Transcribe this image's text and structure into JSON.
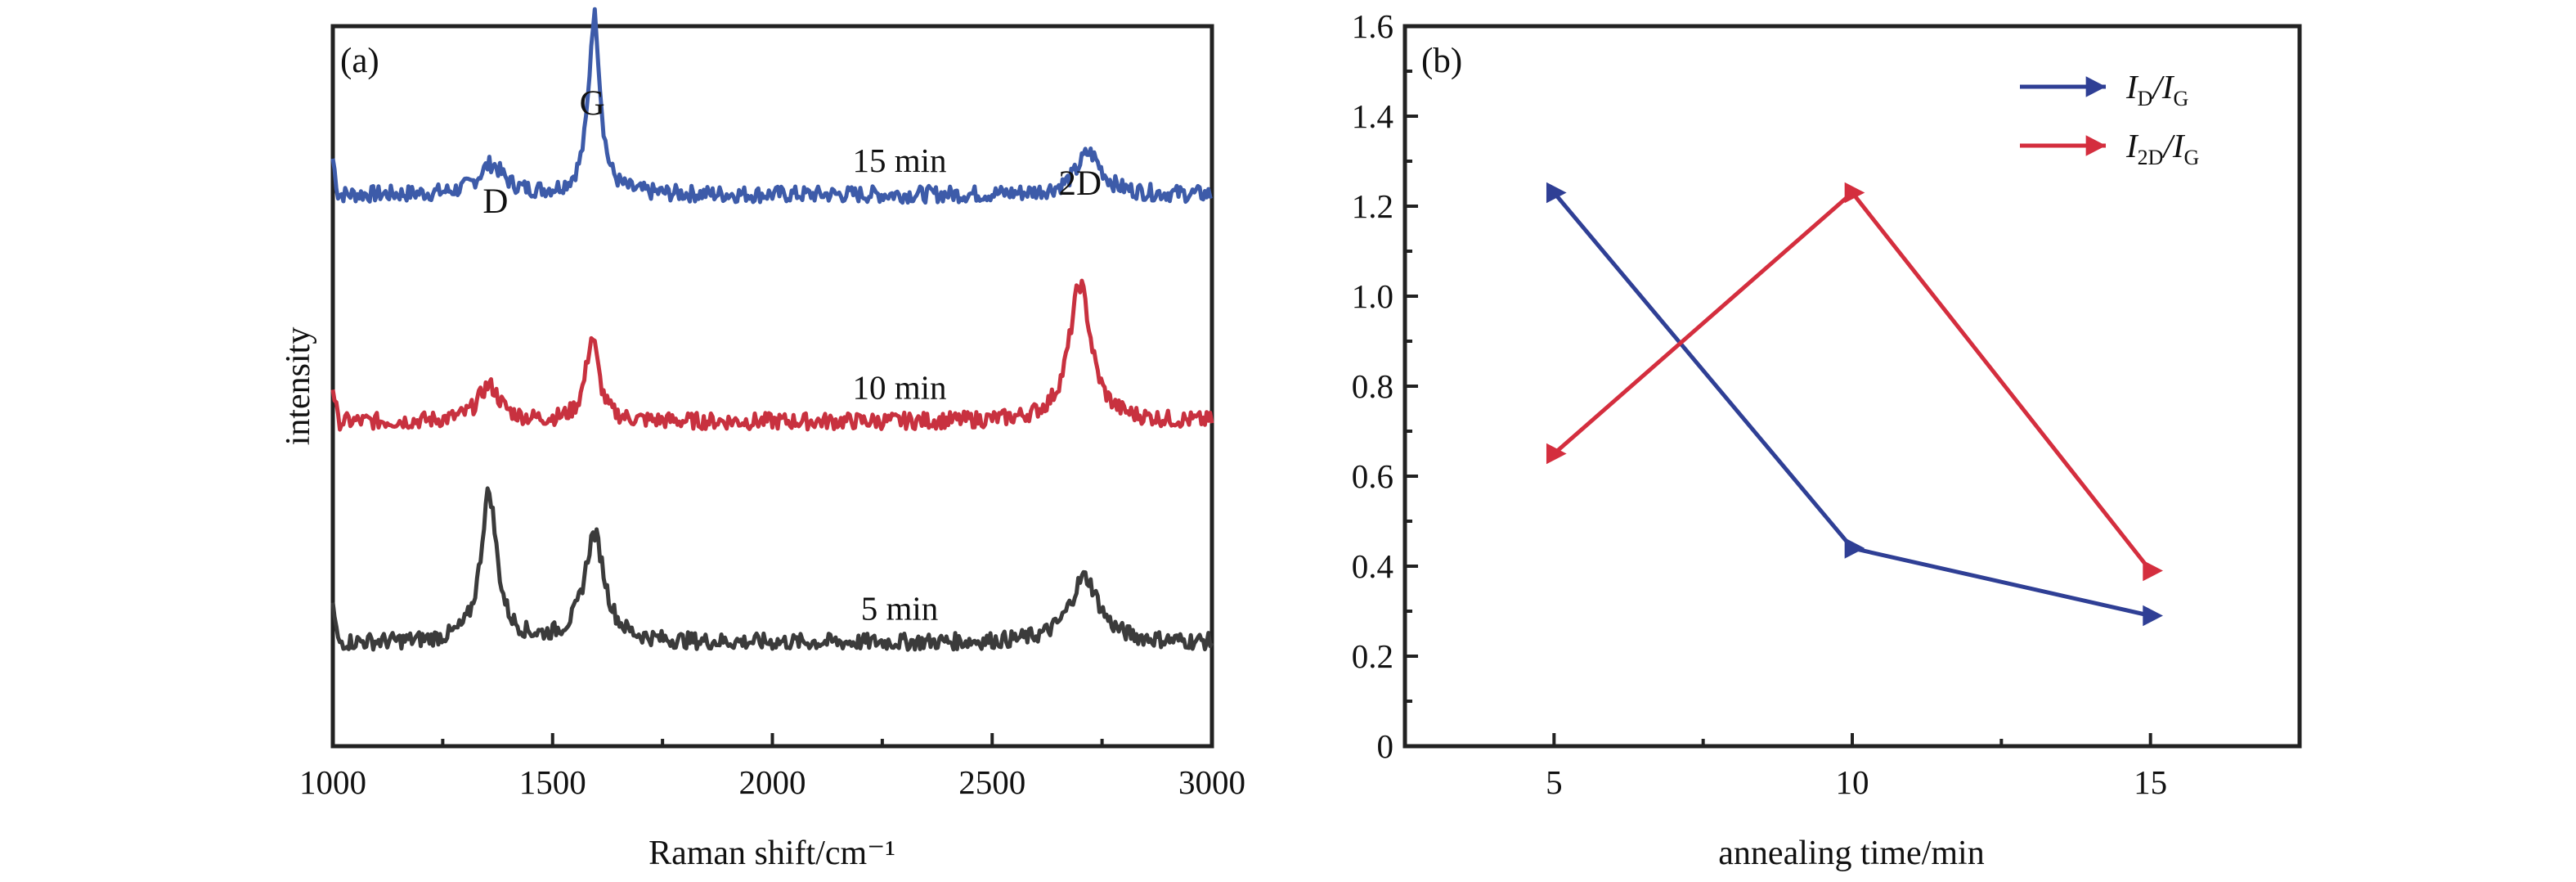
{
  "chart_data": [
    {
      "type": "line",
      "panel_label": "(a)",
      "xlabel": "Raman shift/cm⁻¹",
      "ylabel": "intensity",
      "xlim": [
        1000,
        3000
      ],
      "x_ticks": [
        "1000",
        "1500",
        "2000",
        "2500",
        "3000"
      ],
      "peak_labels": [
        {
          "text": "D",
          "x": 1370
        },
        {
          "text": "G",
          "x": 1590
        },
        {
          "text": "2D",
          "x": 2700
        }
      ],
      "series": [
        {
          "name": "15 min",
          "color": "#3d5ba9",
          "baseline": 0.8,
          "peaks": [
            {
              "center": 1360,
              "height": 0.05,
              "width": 35
            },
            {
              "center": 1595,
              "height": 0.3,
              "width": 16
            },
            {
              "center": 2720,
              "height": 0.07,
              "width": 35
            }
          ]
        },
        {
          "name": "10 min",
          "color": "#c8313f",
          "baseline": 0.42,
          "peaks": [
            {
              "center": 1355,
              "height": 0.06,
              "width": 30
            },
            {
              "center": 1590,
              "height": 0.14,
              "width": 18
            },
            {
              "center": 2700,
              "height": 0.23,
              "width": 30
            }
          ]
        },
        {
          "name": "5 min",
          "color": "#3b3b3b",
          "baseline": 0.05,
          "peaks": [
            {
              "center": 1355,
              "height": 0.25,
              "width": 22
            },
            {
              "center": 1595,
              "height": 0.18,
              "width": 28
            },
            {
              "center": 2710,
              "height": 0.11,
              "width": 40
            }
          ]
        }
      ]
    },
    {
      "type": "line",
      "panel_label": "(b)",
      "xlabel": "annealing time/min",
      "x": [
        5,
        10,
        15
      ],
      "xlim": [
        2.5,
        17.5
      ],
      "ylim": [
        0,
        1.6
      ],
      "y_ticks": [
        "0",
        "0.2",
        "0.4",
        "0.6",
        "0.8",
        "1.0",
        "1.2",
        "1.4",
        "1.6"
      ],
      "x_ticks": [
        "5",
        "10",
        "15"
      ],
      "series": [
        {
          "name": "ID/IG",
          "legend_main": "I",
          "legend_sub1": "D",
          "legend_mid": "/I",
          "legend_sub2": "G",
          "color": "#2f3f95",
          "values": [
            1.23,
            0.44,
            0.29
          ]
        },
        {
          "name": "I2D/IG",
          "legend_main": "I",
          "legend_sub1": "2D",
          "legend_mid": "/I",
          "legend_sub2": "G",
          "color": "#d42e3e",
          "values": [
            0.65,
            1.23,
            0.39
          ]
        }
      ]
    }
  ]
}
